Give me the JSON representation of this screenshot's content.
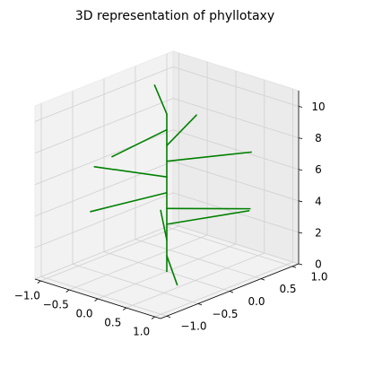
{
  "chart_data": {
    "type": "line",
    "title": "3D representation of phyllotaxy",
    "xlabel": "",
    "ylabel": "",
    "zlabel": "",
    "xlim": [
      -1.1,
      1.1
    ],
    "ylim": [
      -1.1,
      1.1
    ],
    "zlim": [
      0,
      11
    ],
    "x_ticks": [
      -1.0,
      -0.5,
      0.0,
      0.5,
      1.0
    ],
    "x_tick_labels": [
      "−1.0",
      "−0.5",
      "0.0",
      "0.5",
      "1.0"
    ],
    "y_ticks": [
      -1.0,
      -0.5,
      0.0,
      0.5,
      1.0
    ],
    "y_tick_labels": [
      "−1.0",
      "−0.5",
      "0.0",
      "0.5",
      "1.0"
    ],
    "z_ticks": [
      0,
      2,
      4,
      6,
      8,
      10
    ],
    "z_tick_labels": [
      "0",
      "2",
      "4",
      "6",
      "8",
      "10"
    ],
    "grid": true,
    "series_color": "#008000",
    "stem": {
      "x": 0.0,
      "y": 0.0,
      "z0": 0,
      "z1": 10
    },
    "branches": [
      {
        "x": 0.82,
        "y": -0.58,
        "z": 1
      },
      {
        "x": -0.79,
        "y": 0.62,
        "z": 2
      },
      {
        "x": 0.47,
        "y": 0.88,
        "z": 3
      },
      {
        "x": 0.82,
        "y": 0.58,
        "z": 4
      },
      {
        "x": -0.28,
        "y": -0.96,
        "z": 5
      },
      {
        "x": -0.96,
        "y": -0.28,
        "z": 6
      },
      {
        "x": 0.6,
        "y": 0.8,
        "z": 7
      },
      {
        "x": -0.46,
        "y": 0.89,
        "z": 8
      },
      {
        "x": 0.13,
        "y": -0.99,
        "z": 9
      },
      {
        "x": -0.83,
        "y": 0.56,
        "z": 10
      }
    ]
  }
}
